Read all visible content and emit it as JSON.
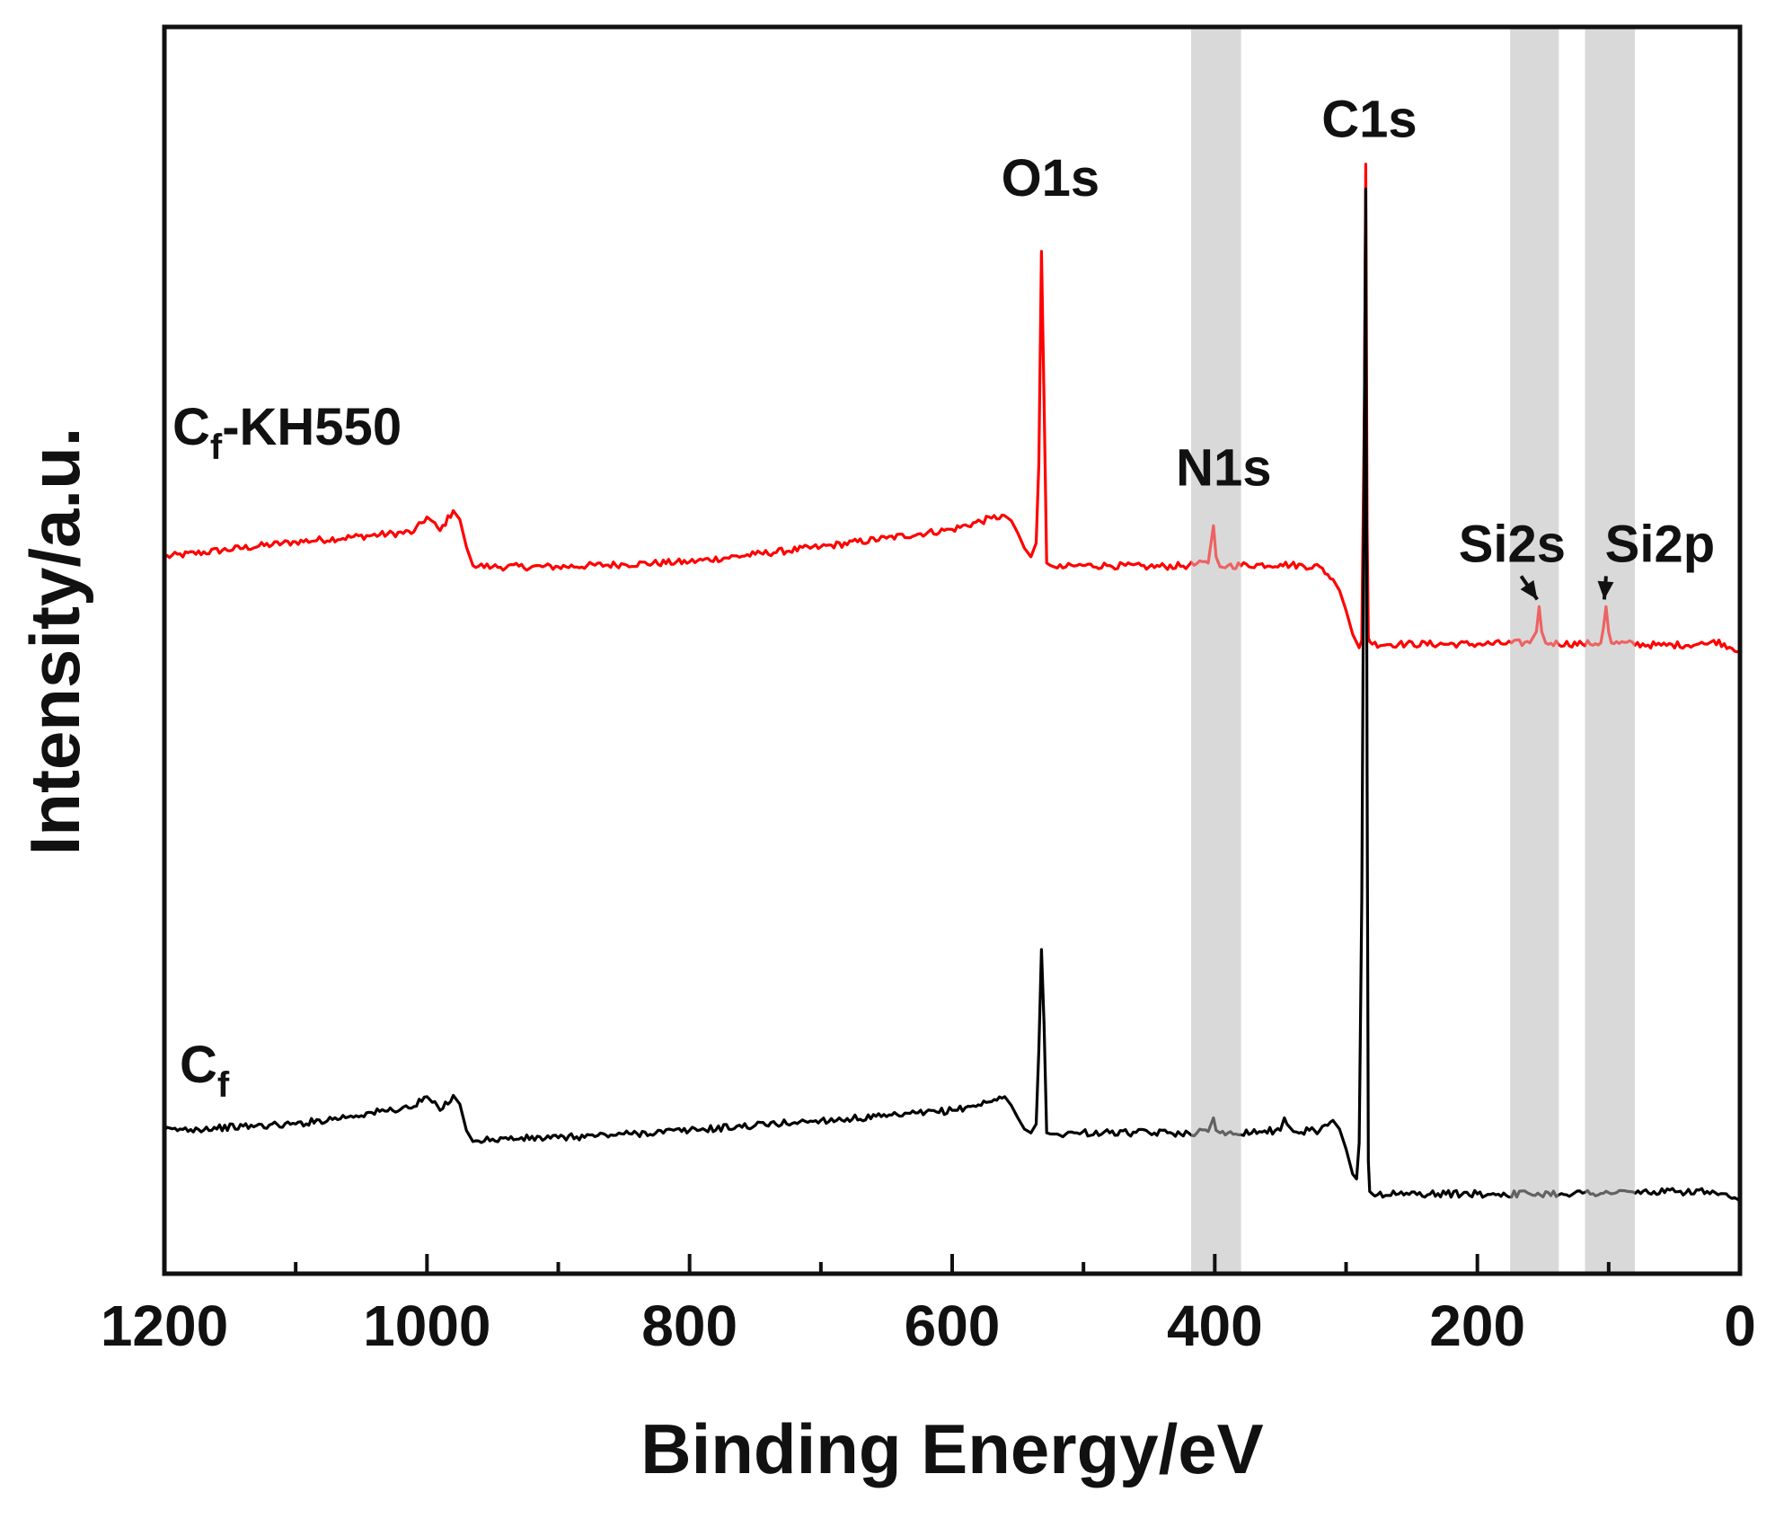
{
  "chart_data": {
    "type": "line",
    "title": "",
    "xlabel": "Binding Energy/eV",
    "ylabel": "Intensity/a.u.",
    "xlim": [
      1200,
      0
    ],
    "x_reversed": true,
    "ylim": [
      0,
      100
    ],
    "x_ticks": [
      1200,
      1000,
      800,
      600,
      400,
      200,
      0
    ],
    "x_tick_labels": [
      "1200",
      "1000",
      "800",
      "600",
      "400",
      "200",
      "0"
    ],
    "y_ticks_shown": false,
    "grid": false,
    "colors": {
      "cf_kh550": "#ff0000",
      "cf": "#000000",
      "band": "#d9d9d9",
      "axis": "#111111"
    },
    "highlight_bands": [
      {
        "name": "N1s",
        "from": 418,
        "to": 380
      },
      {
        "name": "Si2s",
        "from": 175,
        "to": 138
      },
      {
        "name": "Si2p",
        "from": 118,
        "to": 80
      }
    ],
    "peak_labels": [
      {
        "text": "O1s",
        "x": 532,
        "series": "Cf-KH550"
      },
      {
        "text": "N1s",
        "x": 400,
        "series": "Cf-KH550"
      },
      {
        "text": "C1s",
        "x": 285,
        "series": "Cf-KH550"
      },
      {
        "text": "Si2s",
        "x": 153,
        "series": "Cf-KH550",
        "arrow": true
      },
      {
        "text": "Si2p",
        "x": 102,
        "series": "Cf-KH550",
        "arrow": true
      }
    ],
    "series": [
      {
        "name": "Cf-KH550",
        "label_main": "C",
        "label_sub": "f",
        "label_suffix": "-KH550",
        "color": "#ff0000",
        "x": [
          1200,
          1100,
          1010,
          1000,
          990,
          980,
          975,
          970,
          965,
          950,
          900,
          850,
          800,
          750,
          700,
          650,
          600,
          570,
          560,
          555,
          550,
          545,
          540,
          536,
          534,
          532,
          530,
          528,
          525,
          520,
          505,
          480,
          450,
          420,
          405,
          401,
          399,
          396,
          390,
          350,
          320,
          310,
          305,
          300,
          295,
          290,
          288,
          286,
          285,
          284,
          283,
          282,
          280,
          260,
          200,
          160,
          155,
          153,
          151,
          148,
          120,
          106,
          104,
          102,
          100,
          98,
          60,
          25,
          20,
          0
        ],
        "y": [
          57.5,
          58.7,
          59.5,
          60.7,
          59.6,
          61.2,
          60.5,
          58.3,
          56.8,
          56.7,
          56.7,
          56.9,
          57.1,
          57.7,
          58.3,
          59.0,
          59.7,
          60.6,
          60.8,
          60.4,
          59.4,
          58.2,
          57.5,
          58.6,
          65.0,
          82.0,
          70.0,
          57.0,
          56.8,
          56.6,
          56.8,
          56.8,
          56.7,
          56.8,
          57.0,
          60.0,
          57.5,
          56.7,
          56.8,
          56.9,
          56.7,
          55.7,
          54.8,
          53.2,
          51.3,
          50.2,
          50.8,
          70.0,
          89.0,
          60.0,
          51.0,
          50.7,
          50.5,
          50.5,
          50.5,
          50.6,
          51.5,
          53.5,
          51.5,
          50.6,
          50.5,
          50.6,
          51.8,
          53.5,
          51.5,
          50.6,
          50.4,
          50.5,
          50.8,
          50.0
        ]
      },
      {
        "name": "Cf",
        "label_main": "C",
        "label_sub": "f",
        "label_suffix": "",
        "color": "#000000",
        "x": [
          1200,
          1100,
          1010,
          1000,
          990,
          980,
          975,
          970,
          965,
          950,
          900,
          850,
          800,
          750,
          700,
          650,
          600,
          570,
          560,
          555,
          550,
          545,
          540,
          536,
          534,
          532,
          530,
          528,
          525,
          520,
          505,
          480,
          450,
          420,
          405,
          401,
          399,
          396,
          390,
          350,
          347,
          345,
          340,
          320,
          310,
          305,
          300,
          295,
          292,
          290,
          288,
          286,
          285,
          284,
          283,
          282,
          280,
          260,
          200,
          160,
          100,
          25,
          0
        ],
        "y": [
          11.5,
          12.0,
          13.4,
          14.2,
          13.1,
          14.3,
          13.6,
          11.5,
          10.6,
          10.8,
          10.9,
          11.2,
          11.5,
          11.9,
          12.3,
          12.6,
          13.1,
          13.8,
          14.2,
          13.5,
          12.5,
          11.6,
          11.3,
          12.0,
          18.0,
          26.0,
          20.0,
          11.3,
          11.2,
          11.2,
          11.3,
          11.3,
          11.3,
          11.3,
          11.4,
          12.5,
          11.5,
          11.3,
          11.3,
          11.5,
          12.5,
          12.0,
          11.4,
          11.5,
          12.3,
          11.6,
          10.0,
          8.0,
          7.6,
          10.5,
          30.0,
          70.0,
          87.0,
          40.0,
          9.0,
          6.6,
          6.4,
          6.4,
          6.4,
          6.4,
          6.5,
          6.6,
          5.8
        ]
      }
    ]
  }
}
